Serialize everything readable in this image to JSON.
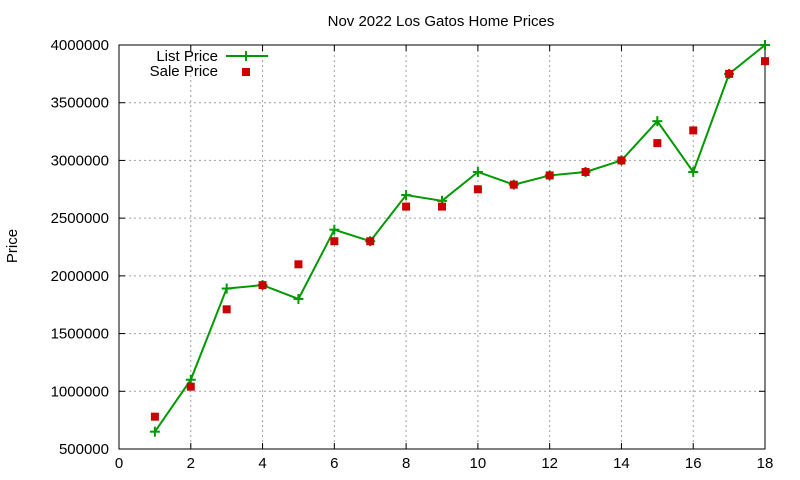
{
  "chart_data": {
    "type": "line",
    "title": "Nov 2022 Los Gatos Home Prices",
    "xlabel": "",
    "ylabel": "Price",
    "xlim": [
      0,
      18
    ],
    "ylim": [
      500000,
      4000000
    ],
    "x_ticks": [
      0,
      2,
      4,
      6,
      8,
      10,
      12,
      14,
      16,
      18
    ],
    "y_ticks": [
      500000,
      1000000,
      1500000,
      2000000,
      2500000,
      3000000,
      3500000,
      4000000
    ],
    "x_tick_labels": [
      "0",
      "2",
      "4",
      "6",
      "8",
      "10",
      "12",
      "14",
      "16",
      "18"
    ],
    "y_tick_labels": [
      "500000",
      "1000000",
      "1500000",
      "2000000",
      "2500000",
      "3000000",
      "3500000",
      "4000000"
    ],
    "grid": true,
    "legend_position": "top-left",
    "series": [
      {
        "name": "List Price",
        "style": "line with + markers",
        "color": "#009900",
        "x": [
          1,
          2,
          3,
          4,
          5,
          6,
          7,
          8,
          9,
          10,
          11,
          12,
          13,
          14,
          15,
          16,
          17,
          18
        ],
        "values": [
          650000,
          1100000,
          1890000,
          1920000,
          1800000,
          2400000,
          2300000,
          2700000,
          2650000,
          2900000,
          2790000,
          2870000,
          2900000,
          3000000,
          3340000,
          2900000,
          3750000,
          4000000
        ]
      },
      {
        "name": "Sale Price",
        "style": "square markers",
        "color": "#cc0000",
        "x": [
          1,
          2,
          3,
          4,
          5,
          6,
          7,
          8,
          9,
          10,
          11,
          12,
          13,
          14,
          15,
          16,
          17,
          18
        ],
        "values": [
          780000,
          1040000,
          1710000,
          1920000,
          2100000,
          2300000,
          2300000,
          2600000,
          2600000,
          2750000,
          2790000,
          2870000,
          2900000,
          3000000,
          3150000,
          3260000,
          3750000,
          3860000
        ]
      }
    ]
  }
}
